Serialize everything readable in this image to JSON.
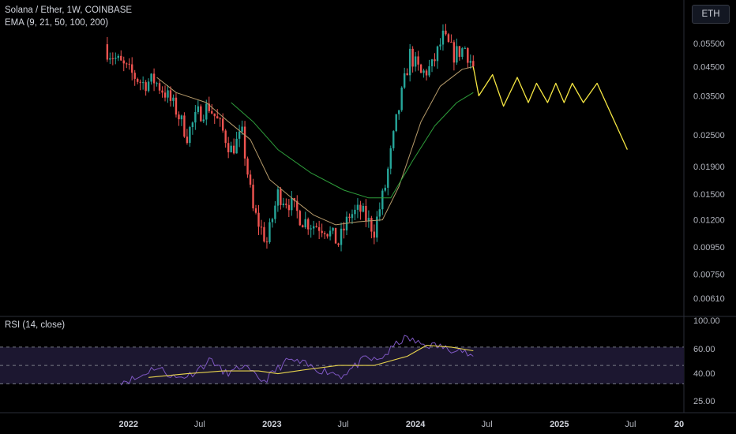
{
  "header": {
    "symbol_title": "Solana / Ether, 1W, COINBASE",
    "ema_legend": "EMA (9, 21, 50, 100, 200)",
    "currency_button": "ETH"
  },
  "rsi_pane": {
    "legend": "RSI (14, close)",
    "ticks": [
      "100.00",
      "60.00",
      "40.00",
      "25.00"
    ],
    "upper_band": 70,
    "middle_band": 50,
    "lower_band": 30,
    "colors": {
      "rsi": "#7e57c2",
      "rsi_ma": "#e8d44d",
      "band_fill": "#1c1730"
    }
  },
  "colors": {
    "up": "#26a69a",
    "down": "#ef5350",
    "ema_21": "#b59a6a",
    "ema_50": "#2e9e3b",
    "projection": "#f5e642",
    "background": "#000000"
  },
  "chart_data": [
    {
      "type": "candlestick",
      "title": "Solana / Ether, 1W, COINBASE",
      "scale": "log",
      "y_ticks": [
        0.055,
        0.045,
        0.035,
        0.025,
        0.019,
        0.015,
        0.012,
        0.0095,
        0.0075,
        0.0061
      ],
      "y_tick_labels": [
        "0.05500",
        "0.04500",
        "0.03500",
        "0.02500",
        "0.01900",
        "0.01500",
        "0.01200",
        "0.00950",
        "0.00750",
        "0.00610"
      ],
      "x_tick_labels": [
        "2022",
        "Jul",
        "2023",
        "Jul",
        "2024",
        "Jul",
        "2025",
        "Jul",
        "20"
      ],
      "close_path": [
        [
          "2021-11-08",
          0.052
        ],
        [
          "2021-12-06",
          0.047
        ],
        [
          "2022-01-03",
          0.043
        ],
        [
          "2022-02-07",
          0.039
        ],
        [
          "2022-03-07",
          0.04
        ],
        [
          "2022-04-04",
          0.036
        ],
        [
          "2022-05-02",
          0.031
        ],
        [
          "2022-05-30",
          0.025
        ],
        [
          "2022-06-27",
          0.03
        ],
        [
          "2022-07-25",
          0.032
        ],
        [
          "2022-08-22",
          0.027
        ],
        [
          "2022-09-19",
          0.022
        ],
        [
          "2022-10-17",
          0.025
        ],
        [
          "2022-11-14",
          0.013
        ],
        [
          "2022-12-19",
          0.0099
        ],
        [
          "2023-01-16",
          0.015
        ],
        [
          "2023-02-13",
          0.014
        ],
        [
          "2023-03-20",
          0.012
        ],
        [
          "2023-04-17",
          0.0115
        ],
        [
          "2023-05-15",
          0.0113
        ],
        [
          "2023-06-19",
          0.0098
        ],
        [
          "2023-07-17",
          0.0125
        ],
        [
          "2023-08-14",
          0.013
        ],
        [
          "2023-09-18",
          0.011
        ],
        [
          "2023-10-16",
          0.016
        ],
        [
          "2023-11-13",
          0.028
        ],
        [
          "2023-12-18",
          0.05
        ],
        [
          "2024-01-15",
          0.042
        ],
        [
          "2024-02-12",
          0.045
        ],
        [
          "2024-03-11",
          0.058
        ],
        [
          "2024-04-08",
          0.05
        ],
        [
          "2024-05-06",
          0.053
        ],
        [
          "2024-05-27",
          0.045
        ]
      ],
      "ema_21": [
        [
          "2022-03-14",
          0.041
        ],
        [
          "2022-05-02",
          0.036
        ],
        [
          "2022-07-18",
          0.033
        ],
        [
          "2022-09-12",
          0.028
        ],
        [
          "2022-11-07",
          0.024
        ],
        [
          "2022-12-26",
          0.017
        ],
        [
          "2023-02-20",
          0.0145
        ],
        [
          "2023-04-17",
          0.0125
        ],
        [
          "2023-06-12",
          0.0115
        ],
        [
          "2023-08-07",
          0.0118
        ],
        [
          "2023-10-09",
          0.012
        ],
        [
          "2023-11-20",
          0.016
        ],
        [
          "2024-01-15",
          0.028
        ],
        [
          "2024-03-04",
          0.038
        ],
        [
          "2024-04-29",
          0.044
        ],
        [
          "2024-05-27",
          0.045
        ]
      ],
      "ema_50": [
        [
          "2022-09-19",
          0.033
        ],
        [
          "2022-11-14",
          0.028
        ],
        [
          "2023-01-16",
          0.022
        ],
        [
          "2023-04-10",
          0.018
        ],
        [
          "2023-07-03",
          0.0155
        ],
        [
          "2023-09-04",
          0.0145
        ],
        [
          "2023-10-30",
          0.0145
        ],
        [
          "2023-12-25",
          0.02
        ],
        [
          "2024-02-19",
          0.027
        ],
        [
          "2024-04-15",
          0.033
        ],
        [
          "2024-05-27",
          0.036
        ]
      ],
      "projection": [
        [
          "2024-05-27",
          0.045
        ],
        [
          "2024-06-10",
          0.035
        ],
        [
          "2024-07-15",
          0.042
        ],
        [
          "2024-08-12",
          0.032
        ],
        [
          "2024-09-16",
          0.041
        ],
        [
          "2024-10-14",
          0.033
        ],
        [
          "2024-11-04",
          0.039
        ],
        [
          "2024-12-02",
          0.033
        ],
        [
          "2024-12-23",
          0.039
        ],
        [
          "2025-01-13",
          0.033
        ],
        [
          "2025-02-03",
          0.039
        ],
        [
          "2025-03-03",
          0.033
        ],
        [
          "2025-04-07",
          0.039
        ],
        [
          "2025-06-23",
          0.022
        ]
      ]
    },
    {
      "type": "line",
      "title": "RSI (14, close)",
      "y_ticks": [
        100,
        60,
        40,
        25
      ],
      "series": [
        {
          "name": "RSI",
          "points": [
            [
              "2021-12-13",
              33
            ],
            [
              "2022-01-24",
              36
            ],
            [
              "2022-03-07",
              48
            ],
            [
              "2022-03-28",
              45
            ],
            [
              "2022-05-02",
              36
            ],
            [
              "2022-06-06",
              40
            ],
            [
              "2022-06-27",
              46
            ],
            [
              "2022-08-01",
              57
            ],
            [
              "2022-08-29",
              42
            ],
            [
              "2022-09-26",
              43
            ],
            [
              "2022-10-17",
              50
            ],
            [
              "2022-11-14",
              40
            ],
            [
              "2022-12-12",
              33
            ],
            [
              "2023-01-16",
              47
            ],
            [
              "2023-02-13",
              56
            ],
            [
              "2023-03-20",
              52
            ],
            [
              "2023-04-24",
              46
            ],
            [
              "2023-05-29",
              43
            ],
            [
              "2023-06-26",
              39
            ],
            [
              "2023-07-31",
              49
            ],
            [
              "2023-08-28",
              58
            ],
            [
              "2023-09-25",
              55
            ],
            [
              "2023-10-23",
              64
            ],
            [
              "2023-11-20",
              76
            ],
            [
              "2023-12-11",
              80
            ],
            [
              "2024-01-08",
              74
            ],
            [
              "2024-02-05",
              72
            ],
            [
              "2024-03-04",
              71
            ],
            [
              "2024-03-25",
              67
            ],
            [
              "2024-04-15",
              70
            ],
            [
              "2024-05-13",
              62
            ],
            [
              "2024-05-27",
              60
            ]
          ]
        },
        {
          "name": "RSI-based MA",
          "points": [
            [
              "2022-02-21",
              37
            ],
            [
              "2022-05-30",
              41
            ],
            [
              "2022-08-29",
              44
            ],
            [
              "2022-11-28",
              44
            ],
            [
              "2023-01-16",
              41
            ],
            [
              "2023-03-20",
              45
            ],
            [
              "2023-06-19",
              50
            ],
            [
              "2023-09-18",
              50
            ],
            [
              "2023-12-11",
              60
            ],
            [
              "2024-01-29",
              72
            ],
            [
              "2024-04-01",
              70
            ],
            [
              "2024-05-27",
              66
            ]
          ]
        }
      ]
    }
  ]
}
